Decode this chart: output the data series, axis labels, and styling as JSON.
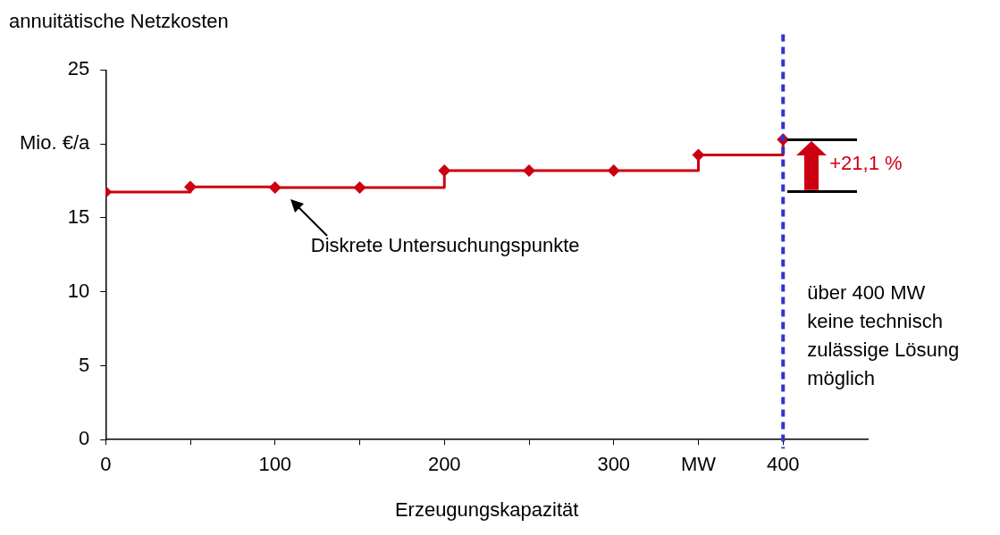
{
  "chart_data": {
    "type": "step",
    "title": "annuitätische Netzkosten",
    "xlabel": "Erzeugungskapazität",
    "x": [
      0,
      50,
      100,
      150,
      200,
      250,
      300,
      350,
      400
    ],
    "series": [
      {
        "color": "#cc0011",
        "values": [
          16.75,
          17.1,
          17.05,
          17.05,
          18.2,
          18.2,
          18.2,
          19.25,
          20.3
        ]
      }
    ],
    "xlim": [
      0,
      450
    ],
    "xticks": [
      0,
      {
        "value": 50,
        "label": null
      },
      100,
      {
        "value": 150,
        "label": null
      },
      200,
      {
        "value": 250,
        "label": null
      },
      300,
      {
        "value": 350,
        "label": "MW"
      },
      400
    ],
    "ylim": [
      0,
      25
    ],
    "yticks": [
      0,
      5,
      10,
      15,
      {
        "value": 20,
        "label": "Mio. €/a"
      },
      25
    ],
    "marker": "diamond",
    "grid": false,
    "legend": false,
    "ref_lines": [
      {
        "axis": "x",
        "value": 400,
        "color": "#3333cc",
        "line_style": "dashed"
      }
    ],
    "annotations": [
      {
        "text": "Diskrete Untersuchungspunkte",
        "x": 100,
        "y": 17.05
      },
      "über 400 MW keine technisch zulässige Lösung möglich",
      "+21,1 %"
    ]
  }
}
